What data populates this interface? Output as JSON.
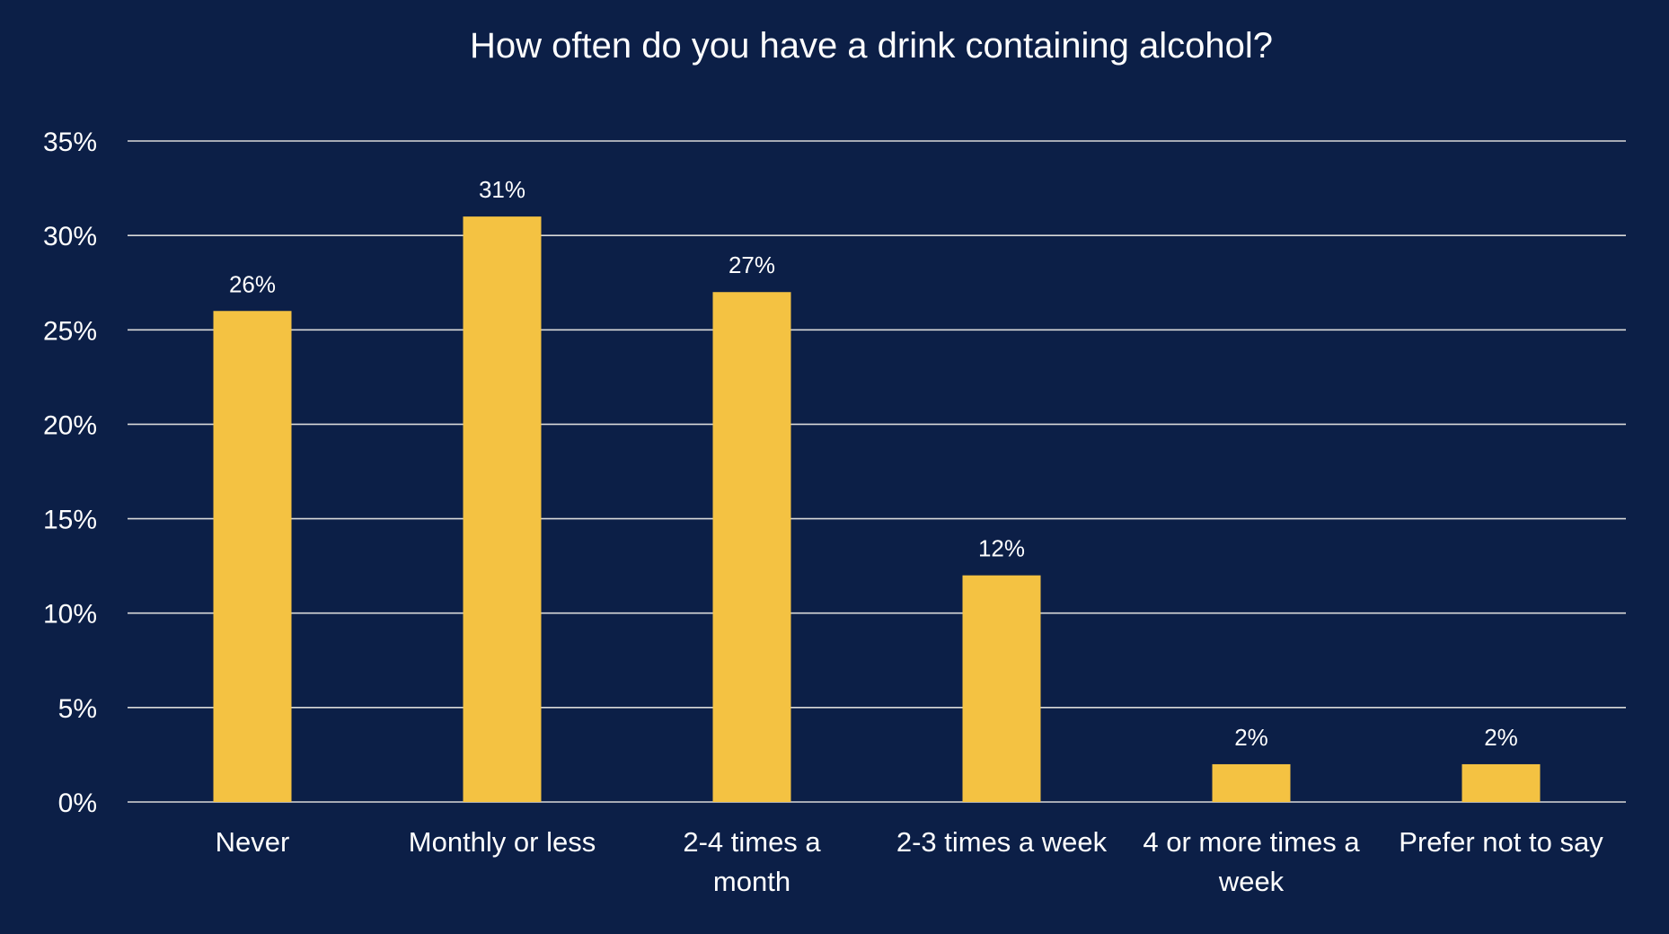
{
  "chart_data": {
    "type": "bar",
    "title": "How often do you have a drink containing alcohol?",
    "xlabel": "",
    "ylabel": "",
    "categories": [
      [
        "Never"
      ],
      [
        "Monthly or less"
      ],
      [
        "2-4 times a",
        "month"
      ],
      [
        "2-3 times a week"
      ],
      [
        "4 or more times a",
        "week"
      ],
      [
        "Prefer not to say"
      ]
    ],
    "values": [
      26,
      31,
      27,
      12,
      2,
      2
    ],
    "data_labels": [
      "26%",
      "31%",
      "27%",
      "12%",
      "2%",
      "2%"
    ],
    "ylim": [
      0,
      35
    ],
    "yticks": [
      0,
      5,
      10,
      15,
      20,
      25,
      30,
      35
    ],
    "ytick_labels": [
      "0%",
      "5%",
      "10%",
      "15%",
      "20%",
      "25%",
      "30%",
      "35%"
    ],
    "grid": true,
    "legend": "none",
    "colors": {
      "background": "#0c1f47",
      "bar": "#f4c242",
      "grid": "#d9d9d9",
      "text": "#ffffff"
    }
  }
}
